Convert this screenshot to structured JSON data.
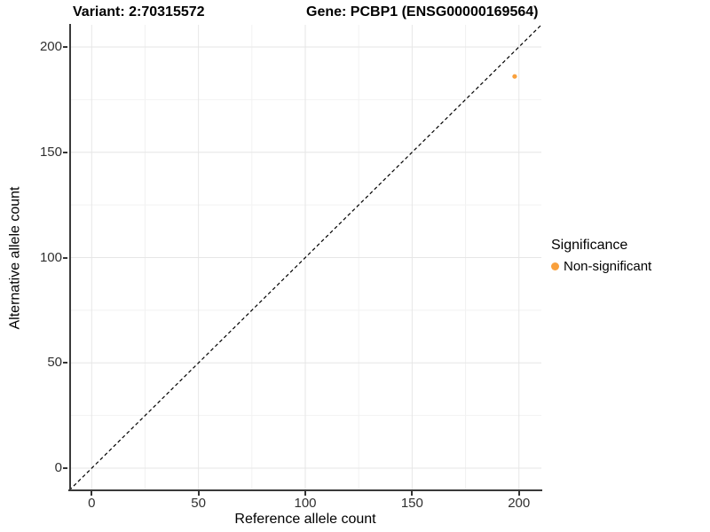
{
  "chart_data": {
    "type": "scatter",
    "title_left": "Variant: 2:70315572",
    "title_right": "Gene: PCBP1 (ENSG00000169564)",
    "xlabel": "Reference allele count",
    "ylabel": "Alternative allele count",
    "x_ticks": [
      0,
      50,
      100,
      150,
      200
    ],
    "y_ticks": [
      0,
      50,
      100,
      150,
      200
    ],
    "x_minor_ticks": [
      25,
      75,
      125,
      175
    ],
    "y_minor_ticks": [
      25,
      75,
      125,
      175
    ],
    "xlim": [
      -10.5,
      210.5
    ],
    "ylim": [
      -10.5,
      210.5
    ],
    "grid": "major+minor",
    "reference_line": {
      "type": "identity y=x",
      "style": "dashed",
      "color": "#000000"
    },
    "series": [
      {
        "name": "Non-significant",
        "color": "#F9A03C",
        "points": [
          {
            "x": 198,
            "y": 186
          }
        ]
      }
    ],
    "legend": {
      "title": "Significance",
      "position": "right",
      "items": [
        {
          "label": "Non-significant",
          "color": "#F9A03C"
        }
      ]
    }
  },
  "colors": {
    "background": "#FFFFFF",
    "axis_line": "#3A3A3A",
    "tick_label": "#303030",
    "grid_major": "#E6E6E6",
    "grid_minor": "#F2F2F2"
  }
}
